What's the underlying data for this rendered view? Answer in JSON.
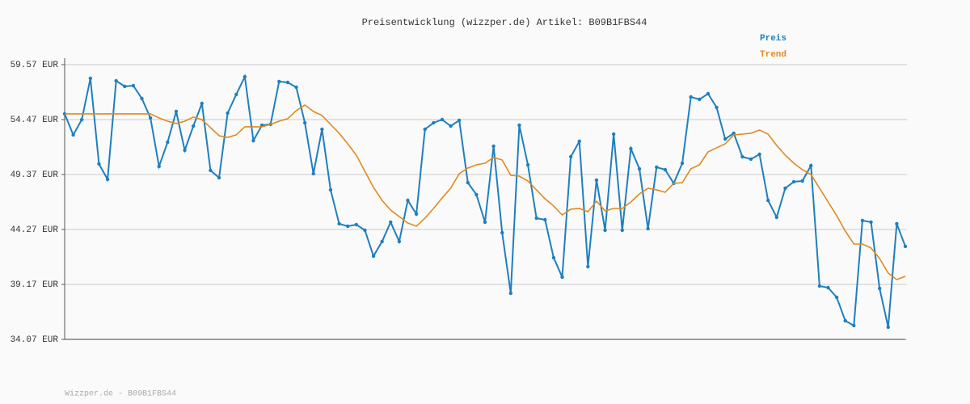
{
  "chart_data": {
    "type": "line",
    "title": "Preisentwicklung (wizzper.de) Artikel: B09B1FBS44",
    "footer": "Wizzper.de - B09B1FBS44",
    "ylim": [
      34.07,
      59.57
    ],
    "yticks": [
      {
        "value": 34.07,
        "label": "34.07 EUR"
      },
      {
        "value": 39.17,
        "label": "39.17 EUR"
      },
      {
        "value": 44.27,
        "label": "44.27 EUR"
      },
      {
        "value": 49.37,
        "label": "49.37 EUR"
      },
      {
        "value": 54.47,
        "label": "54.47 EUR"
      },
      {
        "value": 59.57,
        "label": "59.57 EUR"
      }
    ],
    "grid": true,
    "legend": "top-right",
    "series": [
      {
        "name": "Preis",
        "color": "#1f7fbf",
        "markers": true,
        "values": [
          55.0,
          53.05,
          54.47,
          58.3,
          50.35,
          48.92,
          58.07,
          57.55,
          57.62,
          56.42,
          54.62,
          50.12,
          52.37,
          55.22,
          51.62,
          53.87,
          55.97,
          49.75,
          49.07,
          55.07,
          56.8,
          58.45,
          52.52,
          53.95,
          54.02,
          58.0,
          57.92,
          57.47,
          54.17,
          49.45,
          53.57,
          47.95,
          44.8,
          44.57,
          44.72,
          44.2,
          41.8,
          43.15,
          44.95,
          43.15,
          46.97,
          45.7,
          53.57,
          54.17,
          54.47,
          53.87,
          54.4,
          48.62,
          47.5,
          44.95,
          52.0,
          43.97,
          38.35,
          53.95,
          50.27,
          45.32,
          45.17,
          41.65,
          39.85,
          51.02,
          52.45,
          40.82,
          48.85,
          44.2,
          53.12,
          44.2,
          51.77,
          49.9,
          44.35,
          50.05,
          49.82,
          48.55,
          50.42,
          56.57,
          56.35,
          56.87,
          55.6,
          52.67,
          53.2,
          51.02,
          50.8,
          51.25,
          46.97,
          45.4,
          48.1,
          48.7,
          48.77,
          50.2,
          39.02,
          38.87,
          37.97,
          35.8,
          35.35,
          45.1,
          44.95,
          38.8,
          35.2,
          44.8,
          42.7
        ]
      },
      {
        "name": "Trend",
        "color": "#e08a1e",
        "markers": false,
        "values": [
          55.0,
          55.0,
          55.0,
          55.0,
          55.0,
          55.0,
          55.0,
          55.0,
          55.0,
          55.0,
          55.0,
          54.62,
          54.32,
          54.1,
          54.32,
          54.7,
          54.47,
          53.72,
          52.97,
          52.82,
          53.05,
          53.8,
          53.8,
          53.8,
          54.02,
          54.32,
          54.55,
          55.3,
          55.82,
          55.22,
          54.85,
          54.02,
          53.2,
          52.22,
          51.17,
          49.67,
          48.17,
          46.97,
          46.07,
          45.47,
          44.87,
          44.57,
          45.32,
          46.22,
          47.2,
          48.1,
          49.45,
          49.97,
          50.27,
          50.42,
          50.95,
          50.72,
          49.3,
          49.22,
          48.77,
          47.95,
          47.12,
          46.45,
          45.62,
          46.15,
          46.22,
          45.92,
          46.9,
          46.0,
          46.22,
          46.22,
          46.82,
          47.57,
          48.1,
          47.95,
          47.72,
          48.55,
          48.62,
          49.9,
          50.27,
          51.47,
          51.85,
          52.22,
          53.05,
          53.12,
          53.2,
          53.5,
          53.12,
          52.07,
          51.17,
          50.42,
          49.82,
          49.37,
          48.1,
          46.82,
          45.55,
          44.12,
          42.92,
          42.92,
          42.55,
          41.57,
          40.22,
          39.62,
          39.92
        ]
      }
    ]
  }
}
